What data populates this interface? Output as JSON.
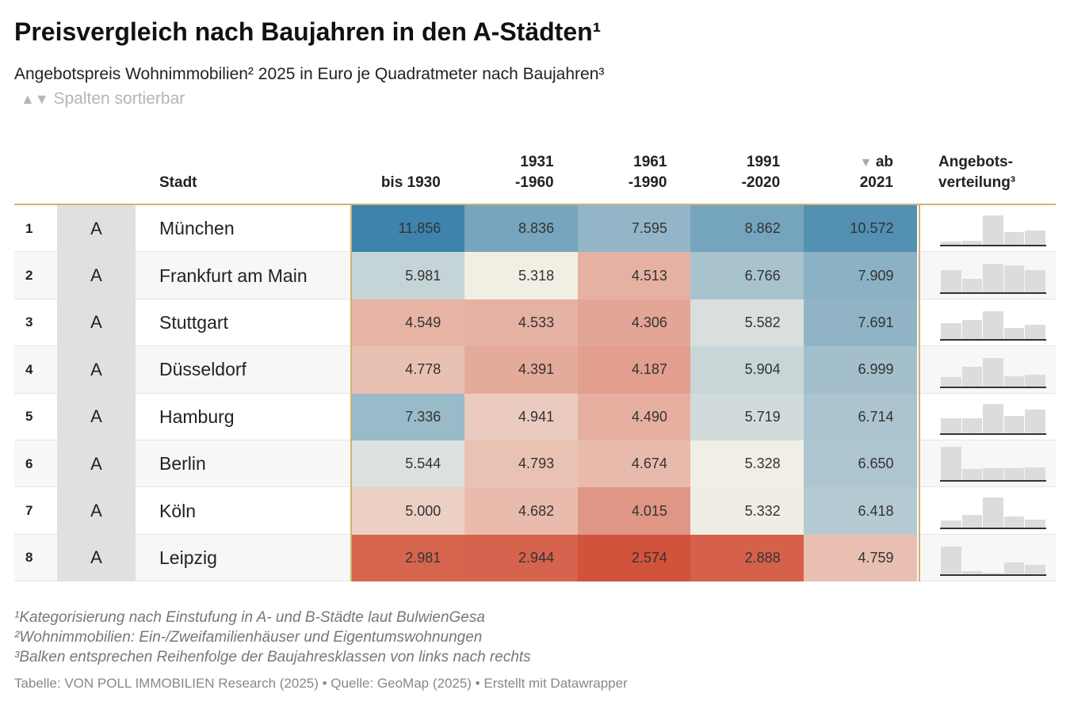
{
  "header": {
    "title": "Preisvergleich nach Baujahren in den A-Städten¹",
    "subtitle": "Angebotspreis Wohnimmobilien² 2025 in Euro je Quadratmeter nach Baujahren³",
    "sort_hint": "Spalten sortierbar"
  },
  "table": {
    "columns": {
      "city": "Stadt",
      "years": [
        [
          "bis 1930"
        ],
        [
          "1931",
          "-1960"
        ],
        [
          "1961",
          "-1990"
        ],
        [
          "1991",
          "-2020"
        ],
        [
          "ab",
          "2021"
        ]
      ],
      "distribution": [
        "Angebots-",
        "verteilung³"
      ]
    },
    "sorted_column": 4,
    "rows": [
      {
        "rank": "1",
        "class": "A",
        "city": "München",
        "values": [
          "11.856",
          "8.836",
          "7.595",
          "8.862",
          "10.572"
        ],
        "distribution": [
          5,
          6,
          40,
          18,
          20
        ]
      },
      {
        "rank": "2",
        "class": "A",
        "city": "Frankfurt am Main",
        "values": [
          "5.981",
          "5.318",
          "4.513",
          "6.766",
          "7.909"
        ],
        "distribution": [
          30,
          18,
          38,
          36,
          30
        ]
      },
      {
        "rank": "3",
        "class": "A",
        "city": "Stuttgart",
        "values": [
          "4.549",
          "4.533",
          "4.306",
          "5.582",
          "7.691"
        ],
        "distribution": [
          22,
          26,
          38,
          15,
          19
        ]
      },
      {
        "rank": "4",
        "class": "A",
        "city": "Düsseldorf",
        "values": [
          "4.778",
          "4.391",
          "4.187",
          "5.904",
          "6.999"
        ],
        "distribution": [
          12,
          26,
          38,
          13,
          16
        ]
      },
      {
        "rank": "5",
        "class": "A",
        "city": "Hamburg",
        "values": [
          "7.336",
          "4.941",
          "4.490",
          "5.719",
          "6.714"
        ],
        "distribution": [
          20,
          20,
          40,
          24,
          32
        ]
      },
      {
        "rank": "6",
        "class": "A",
        "city": "Berlin",
        "values": [
          "5.544",
          "4.793",
          "4.674",
          "5.328",
          "6.650"
        ],
        "distribution": [
          45,
          15,
          16,
          16,
          18
        ]
      },
      {
        "rank": "7",
        "class": "A",
        "city": "Köln",
        "values": [
          "5.000",
          "4.682",
          "4.015",
          "5.332",
          "6.418"
        ],
        "distribution": [
          9,
          17,
          40,
          15,
          10
        ]
      },
      {
        "rank": "8",
        "class": "A",
        "city": "Leipzig",
        "values": [
          "2.981",
          "2.944",
          "2.574",
          "2.888",
          "4.759"
        ],
        "distribution": [
          38,
          4,
          2,
          16,
          13
        ]
      }
    ]
  },
  "footer": {
    "notes": [
      "¹Kategorisierung nach Einstufung in A- und B-Städte laut BulwienGesa",
      "²Wohnimmobilien: Ein-/Zweifamilienhäuser und Eigentumswohnungen",
      "³Balken entsprechen Reihenfolge der Baujahresklassen von links nach rechts"
    ],
    "source": "Tabelle: VON POLL IMMOBILIEN Research (2025) • Quelle: GeoMap (2025) • Erstellt mit Datawrapper"
  }
}
